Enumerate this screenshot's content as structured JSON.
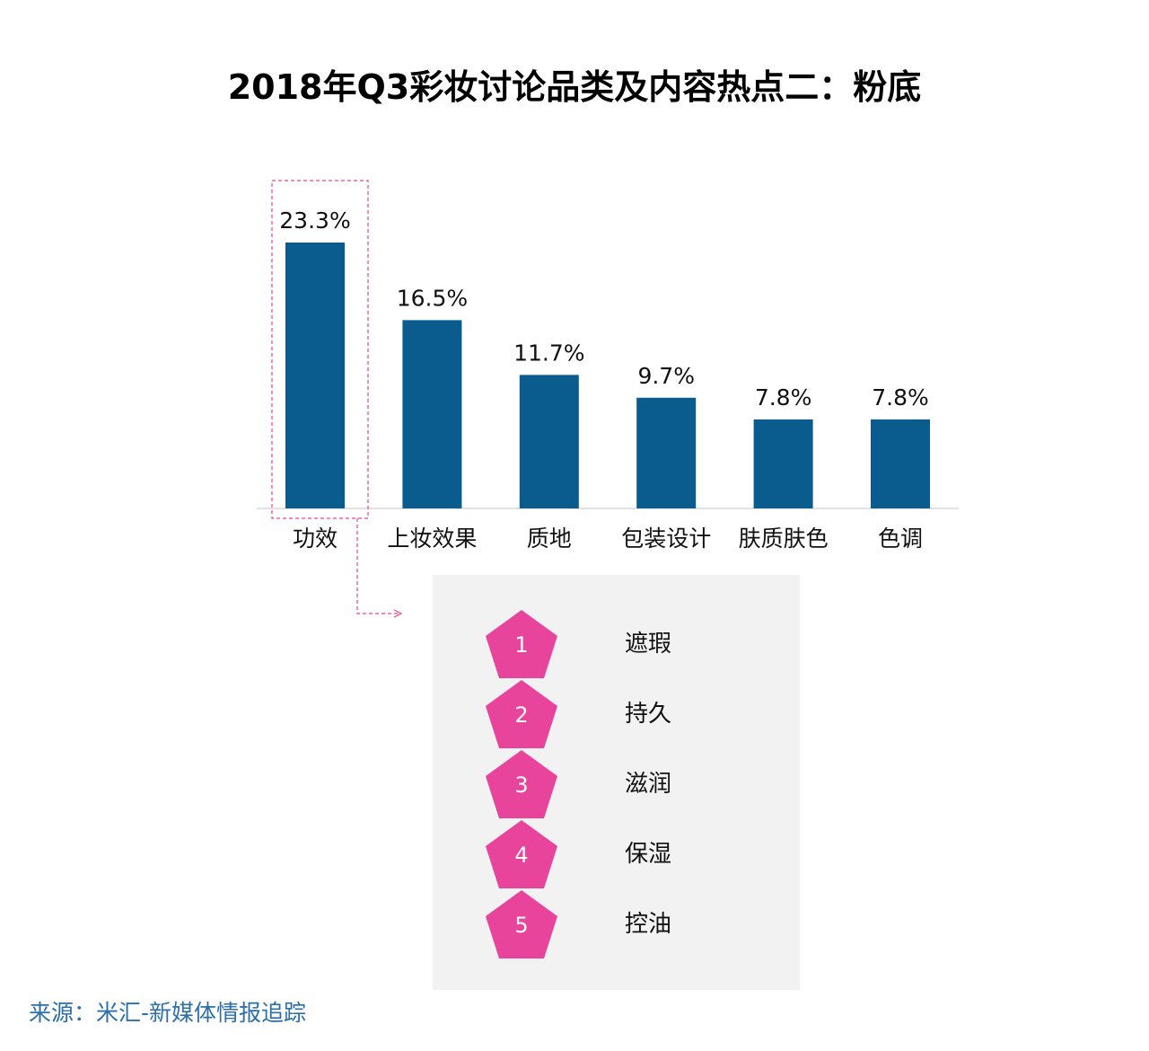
{
  "title": "2018年Q3彩妆讨论品类及内容热点二：粉底",
  "chart_data": {
    "type": "bar",
    "title": "2018年Q3彩妆讨论品类及内容热点二：粉底",
    "categories": [
      "功效",
      "上妆效果",
      "质地",
      "包装设计",
      "肤质肤色",
      "色调"
    ],
    "values": [
      23.3,
      16.5,
      11.7,
      9.7,
      7.8,
      7.8
    ],
    "value_labels": [
      "23.3%",
      "16.5%",
      "11.7%",
      "9.7%",
      "7.8%",
      "7.8%"
    ],
    "ylim": [
      0,
      23.3
    ],
    "grid": false,
    "highlighted_category": "功效",
    "bar_color": "#0a5c8e"
  },
  "ranking": {
    "items": [
      {
        "rank": "1",
        "label": "遮瑕"
      },
      {
        "rank": "2",
        "label": "持久"
      },
      {
        "rank": "3",
        "label": "滋润"
      },
      {
        "rank": "4",
        "label": "保湿"
      },
      {
        "rank": "5",
        "label": "控油"
      }
    ],
    "badge_color": "#e8449c"
  },
  "source": "来源：米汇-新媒体情报追踪"
}
